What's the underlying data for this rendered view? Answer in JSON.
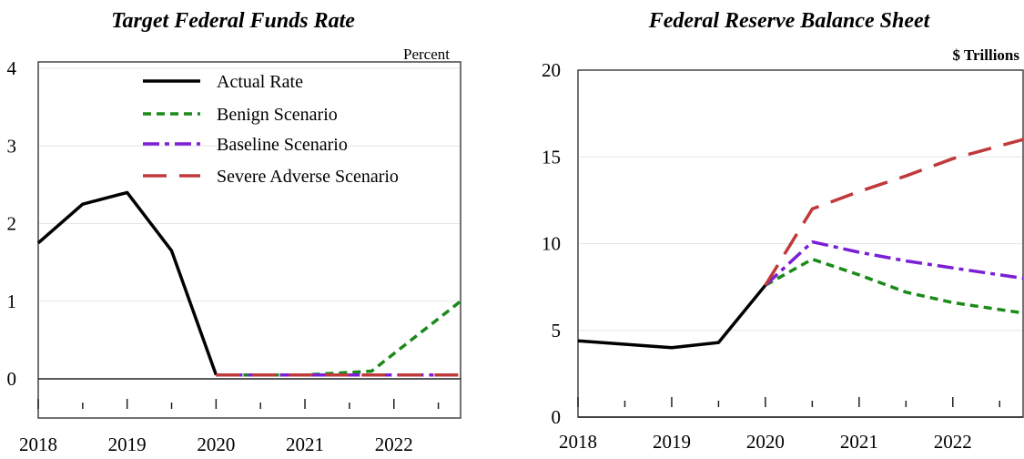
{
  "chart_data": [
    {
      "type": "line",
      "title": "Target Federal Funds Rate",
      "unit_label": "Percent",
      "xlabel": "",
      "ylabel": "",
      "x_ticks": [
        "2018",
        "2019",
        "2020",
        "2021",
        "2022"
      ],
      "y_ticks": [
        "0",
        "1",
        "2",
        "3",
        "4"
      ],
      "xlim": [
        2018.0,
        2022.75
      ],
      "ylim": [
        -0.5,
        4.0
      ],
      "grid": true,
      "legend_position": "top-right",
      "series": [
        {
          "name": "Actual Rate",
          "color": "#000000",
          "style": "solid",
          "x": [
            2018.0,
            2018.5,
            2019.0,
            2019.5,
            2020.0
          ],
          "y": [
            1.75,
            2.25,
            2.4,
            1.65,
            0.05
          ]
        },
        {
          "name": "Benign Scenario",
          "color": "#1a8a1a",
          "style": "dash",
          "x": [
            2020.0,
            2021.0,
            2021.75,
            2022.75
          ],
          "y": [
            0.05,
            0.05,
            0.1,
            1.0
          ]
        },
        {
          "name": "Baseline Scenario",
          "color": "#7a1fd6",
          "style": "dashdot",
          "x": [
            2020.0,
            2021.0,
            2022.0,
            2022.75
          ],
          "y": [
            0.05,
            0.05,
            0.05,
            0.05
          ]
        },
        {
          "name": "Severe Adverse Scenario",
          "color": "#c0393b",
          "style": "longdash",
          "x": [
            2020.0,
            2021.0,
            2022.0,
            2022.75
          ],
          "y": [
            0.05,
            0.05,
            0.05,
            0.05
          ]
        }
      ]
    },
    {
      "type": "line",
      "title": "Federal Reserve Balance Sheet",
      "unit_label": "$ Trillions",
      "xlabel": "",
      "ylabel": "",
      "x_ticks": [
        "2018",
        "2019",
        "2020",
        "2021",
        "2022"
      ],
      "y_ticks": [
        "0",
        "5",
        "10",
        "15",
        "20"
      ],
      "xlim": [
        2018.0,
        2022.75
      ],
      "ylim": [
        0,
        20
      ],
      "grid": true,
      "legend_position": "none",
      "series": [
        {
          "name": "",
          "color": "#000000",
          "style": "solid",
          "x": [
            2018.0,
            2019.0,
            2019.5,
            2020.0
          ],
          "y": [
            4.4,
            4.0,
            4.3,
            7.6
          ]
        },
        {
          "name": "",
          "color": "#1a8a1a",
          "style": "dash",
          "x": [
            2020.0,
            2020.5,
            2021.0,
            2021.5,
            2022.0,
            2022.75
          ],
          "y": [
            7.6,
            9.1,
            8.2,
            7.2,
            6.6,
            6.0
          ]
        },
        {
          "name": "",
          "color": "#7a1fd6",
          "style": "dashdot",
          "x": [
            2020.0,
            2020.5,
            2021.0,
            2021.5,
            2022.0,
            2022.75
          ],
          "y": [
            7.6,
            10.1,
            9.5,
            9.0,
            8.6,
            8.0
          ]
        },
        {
          "name": "",
          "color": "#c0393b",
          "style": "longdash",
          "x": [
            2020.0,
            2020.5,
            2021.0,
            2021.5,
            2022.0,
            2022.75
          ],
          "y": [
            7.6,
            12.0,
            13.0,
            13.9,
            14.9,
            16.0
          ]
        }
      ]
    }
  ]
}
